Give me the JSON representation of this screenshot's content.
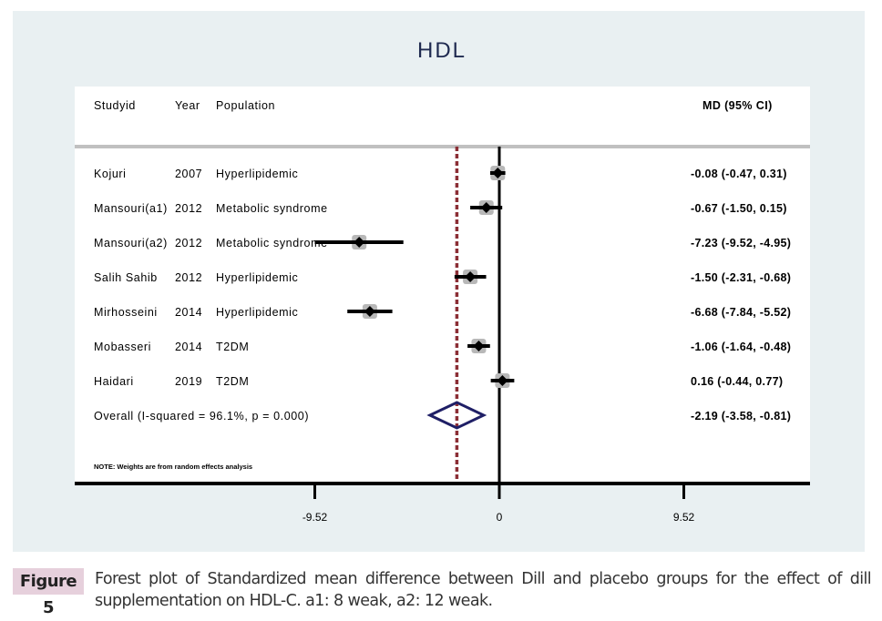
{
  "chart_data": {
    "type": "forest",
    "title": "HDL",
    "columns": {
      "study": "Studyid",
      "year": "Year",
      "population": "Population",
      "effect": "MD (95% CI)"
    },
    "studies": [
      {
        "study": "Kojuri",
        "year": "2007",
        "population": "Hyperlipidemic",
        "md": -0.08,
        "lo": -0.47,
        "hi": 0.31,
        "label": "-0.08 (-0.47, 0.31)"
      },
      {
        "study": "Mansouri(a1)",
        "year": "2012",
        "population": "Metabolic syndrome",
        "md": -0.67,
        "lo": -1.5,
        "hi": 0.15,
        "label": "-0.67 (-1.50, 0.15)"
      },
      {
        "study": "Mansouri(a2)",
        "year": "2012",
        "population": "Metabolic syndrome",
        "md": -7.23,
        "lo": -9.52,
        "hi": -4.95,
        "label": "-7.23 (-9.52, -4.95)"
      },
      {
        "study": "Salih Sahib",
        "year": "2012",
        "population": "Hyperlipidemic",
        "md": -1.5,
        "lo": -2.31,
        "hi": -0.68,
        "label": "-1.50 (-2.31, -0.68)"
      },
      {
        "study": "Mirhosseini",
        "year": "2014",
        "population": "Hyperlipidemic",
        "md": -6.68,
        "lo": -7.84,
        "hi": -5.52,
        "label": "-6.68 (-7.84, -5.52)"
      },
      {
        "study": "Mobasseri",
        "year": "2014",
        "population": "T2DM",
        "md": -1.06,
        "lo": -1.64,
        "hi": -0.48,
        "label": "-1.06 (-1.64, -0.48)"
      },
      {
        "study": "Haidari",
        "year": "2019",
        "population": "T2DM",
        "md": 0.16,
        "lo": -0.44,
        "hi": 0.77,
        "label": "0.16 (-0.44, 0.77)"
      }
    ],
    "overall": {
      "text": "Overall  (I-squared = 96.1%, p = 0.000)",
      "md": -2.19,
      "lo": -3.58,
      "hi": -0.81,
      "label": "-2.19 (-3.58, -0.81)"
    },
    "note": "NOTE: Weights are from random effects analysis",
    "xticks": [
      -9.52,
      0,
      9.52
    ],
    "xtick_labels": [
      "-9.52",
      "0",
      "9.52"
    ],
    "colors": {
      "panel": "#e9f0f2",
      "overall_line": "#8b2e35",
      "diamond": "#1f1f66",
      "box": "#b8b8b8"
    }
  },
  "figure": {
    "label": "Figure 5",
    "caption": "Forest plot of Standardized mean difference between Dill and placebo groups for the effect of dill supplementation on HDL-C. a1: 8 weak, a2: 12 weak."
  }
}
